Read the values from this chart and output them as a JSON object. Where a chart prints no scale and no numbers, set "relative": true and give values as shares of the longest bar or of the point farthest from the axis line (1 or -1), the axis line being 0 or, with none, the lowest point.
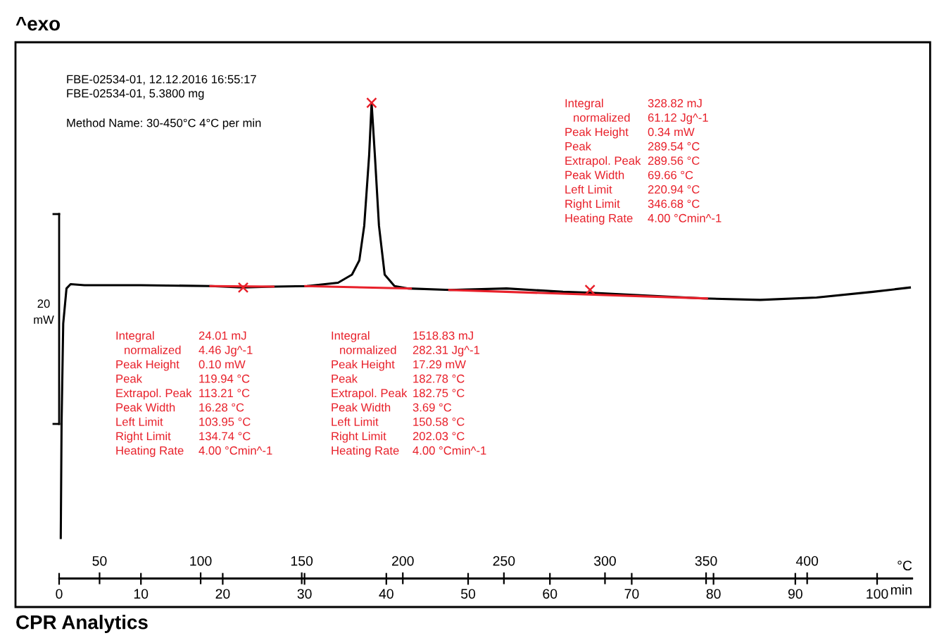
{
  "chart_data": {
    "type": "line",
    "title": "^exo",
    "relative": true,
    "xlabel": "min",
    "xlim": [
      0,
      104.3
    ],
    "xticks": [
      0,
      10,
      20,
      30,
      40,
      50,
      60,
      70,
      80,
      90,
      100
    ],
    "x2label": "°C",
    "x2lim": [
      30,
      452
    ],
    "x2ticks": [
      50,
      100,
      150,
      200,
      250,
      300,
      350,
      400
    ],
    "series": [
      {
        "color": "#000000",
        "x": [
          0.2,
          0.3,
          0.5,
          0.9,
          1.4,
          3.1,
          10,
          18.6,
          22.4,
          26.3,
          30.3,
          34.1,
          35.8,
          36.7,
          37.3,
          37.9,
          38.2,
          38.6,
          39.1,
          39.8,
          41,
          42.7,
          47.8,
          54.7,
          61.6,
          65.1,
          71.9,
          78.8,
          85.7,
          92.6,
          99.5,
          104
        ],
        "values": [
          0.086,
          0.328,
          0.536,
          0.61,
          0.619,
          0.617,
          0.617,
          0.615,
          0.612,
          0.614,
          0.615,
          0.622,
          0.639,
          0.669,
          0.742,
          0.89,
          1,
          0.89,
          0.742,
          0.639,
          0.615,
          0.61,
          0.607,
          0.61,
          0.603,
          0.601,
          0.595,
          0.589,
          0.586,
          0.591,
          0.603,
          0.612
        ]
      },
      {
        "color": "#e8202a",
        "x": [
          18.5,
          26.2
        ],
        "values": [
          0.615,
          0.614
        ]
      },
      {
        "color": "#e8202a",
        "x": [
          30.1,
          43.0
        ],
        "values": [
          0.615,
          0.61
        ]
      },
      {
        "color": "#e8202a",
        "x": [
          47.7,
          79.2
        ],
        "values": [
          0.607,
          0.589
        ]
      },
      {
        "type": "scatter",
        "marker": "cross",
        "color": "#e8202a",
        "x": [
          22.5,
          38.2,
          64.9
        ],
        "values": [
          0.612,
          1,
          0.607
        ]
      }
    ],
    "annotations": [
      "FBE-02534-01, 12.12.2016 16:55:17",
      "FBE-02534-01, 5.3800 mg",
      "Method Name: 30-450°C 4°C per min",
      "Integral",
      "328.82 mJ",
      "normalized",
      "61.12 Jg^-1",
      "Peak Height",
      "0.34 mW",
      "Peak",
      "289.54 °C",
      "Extrapol. Peak",
      "289.56 °C",
      "Peak Width",
      "69.66 °C",
      "Left Limit",
      "220.94 °C",
      "Right Limit",
      "346.68 °C",
      "Heating Rate",
      "4.00 °Cmin^-1",
      "Integral",
      "24.01 mJ",
      "normalized",
      "4.46 Jg^-1",
      "Peak Height",
      "0.10 mW",
      "Peak",
      "119.94 °C",
      "Extrapol. Peak",
      "113.21 °C",
      "Peak Width",
      "16.28 °C",
      "Left Limit",
      "103.95 °C",
      "Right Limit",
      "134.74 °C",
      "Heating Rate",
      "4.00 °Cmin^-1",
      "Integral",
      "1518.83 mJ",
      "normalized",
      "282.31 Jg^-1",
      "Peak Height",
      "17.29 mW",
      "Peak",
      "182.78 °C",
      "Extrapol. Peak",
      "182.75 °C",
      "Peak Width",
      "3.69 °C",
      "Left Limit",
      "150.58 °C",
      "Right Limit",
      "202.03 °C",
      "Heating Rate",
      "4.00 °Cmin^-1",
      "20\nmW",
      "CPR Analytics"
    ]
  }
}
